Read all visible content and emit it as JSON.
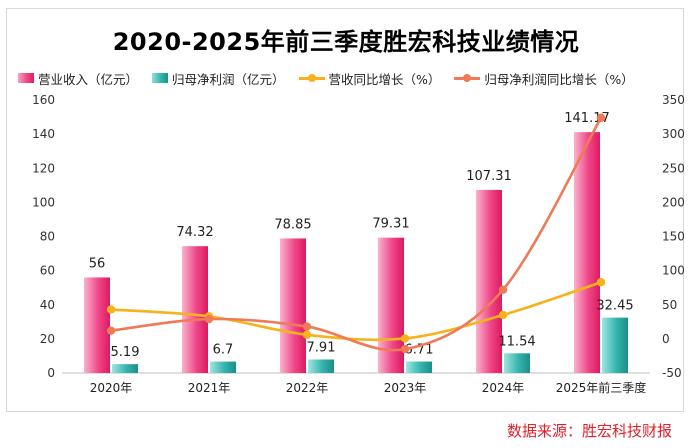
{
  "chart_data": {
    "type": "bar",
    "title": "2020-2025年前三季度胜宏科技业绩情况",
    "categories": [
      "2020年",
      "2021年",
      "2022年",
      "2023年",
      "2024年",
      "2025年前三季度"
    ],
    "series": [
      {
        "name": "营业收入（亿元）",
        "kind": "bar",
        "axis": "left",
        "color": "#f0478a",
        "values": [
          56,
          74.32,
          78.85,
          79.31,
          107.31,
          141.17
        ],
        "labels": [
          "56",
          "74.32",
          "78.85",
          "79.31",
          "107.31",
          "141.17"
        ]
      },
      {
        "name": "归母净利润（亿元）",
        "kind": "bar",
        "axis": "left",
        "color": "#35b5ae",
        "values": [
          5.19,
          6.7,
          7.91,
          6.71,
          11.54,
          32.45
        ],
        "labels": [
          "5.19",
          "6.7",
          "7.91",
          "6.71",
          "11.54",
          "32.45"
        ]
      },
      {
        "name": "营收同比增长（%）",
        "kind": "line",
        "axis": "right",
        "color": "#f6b21b",
        "values": [
          43,
          33,
          6,
          0.6,
          35,
          83
        ]
      },
      {
        "name": "归母净利润同比增长（%）",
        "kind": "line",
        "axis": "right",
        "color": "#f07a55",
        "values": [
          12,
          29,
          18,
          -15,
          72,
          324
        ]
      }
    ],
    "y_left": {
      "min": 0,
      "max": 160,
      "ticks": [
        0,
        20,
        40,
        60,
        80,
        100,
        120,
        140,
        160
      ]
    },
    "y_right": {
      "min": -50,
      "max": 350,
      "ticks": [
        -50,
        0,
        50,
        100,
        150,
        200,
        250,
        300,
        350
      ]
    },
    "legend_position": "top",
    "grid": false
  },
  "source_text": "数据来源：胜宏科技财报"
}
